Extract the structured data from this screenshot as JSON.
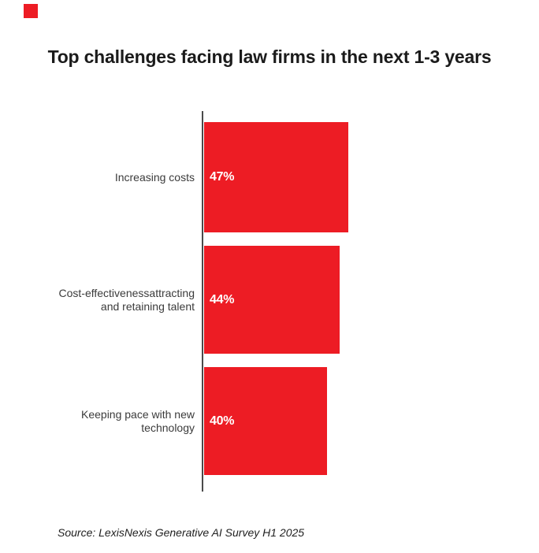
{
  "page": {
    "background_color": "#ffffff"
  },
  "brand": {
    "mark_color": "#ED1C24"
  },
  "header": {
    "title": "Top challenges facing law firms in the next 1-3 years"
  },
  "footer": {
    "source": "Source: LexisNexis Generative AI Survey H1 2025"
  },
  "chart_data": {
    "type": "bar",
    "orientation": "horizontal",
    "title": "Top challenges facing law firms in the next 1-3 years",
    "categories": [
      "Increasing costs",
      "Cost-effectivenessattracting and retaining talent",
      "Keeping pace with new technology"
    ],
    "values": [
      47,
      44,
      40
    ],
    "value_labels": [
      "47%",
      "44%",
      "40%"
    ],
    "unit": "%",
    "xlim": [
      0,
      100
    ],
    "bar_color": "#ED1C24",
    "value_label_color": "#ffffff",
    "category_label_color": "#3b3b3b",
    "axis_line_color": "#4a4a4a",
    "grid": false,
    "legend": false,
    "source": "Source: LexisNexis Generative AI Survey H1 2025"
  }
}
